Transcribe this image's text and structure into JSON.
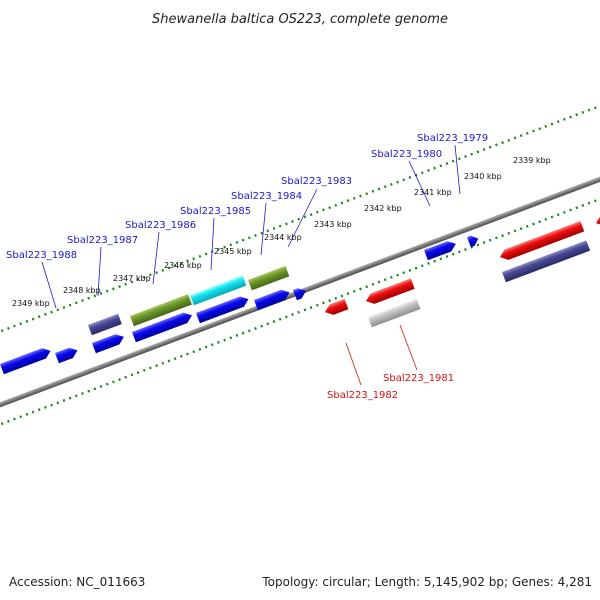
{
  "title": "Shewanella baltica OS223, complete genome",
  "footer": {
    "accession": "Accession: NC_011663",
    "summary": "Topology: circular; Length: 5,145,902 bp; Genes: 4,281"
  },
  "colors": {
    "background": "#ffffff",
    "backbone": "#777777",
    "tick": "#1a8a1a",
    "label_forward": "#1a1ac8",
    "label_reverse": "#d21414"
  },
  "ruler_labels": [
    "2349 kbp",
    "2348 kbp",
    "2347 kbp",
    "2346 kbp",
    "2345 kbp",
    "2344 kbp",
    "2343 kbp",
    "2342 kbp",
    "2341 kbp",
    "2340 kbp",
    "2339 kbp"
  ],
  "gene_labels": {
    "forward": [
      "Sbal223_1988",
      "Sbal223_1987",
      "Sbal223_1986",
      "Sbal223_1985",
      "Sbal223_1984",
      "Sbal223_1983",
      "Sbal223_1980",
      "Sbal223_1979"
    ],
    "reverse": [
      "Sbal223_1982",
      "Sbal223_1981"
    ]
  }
}
